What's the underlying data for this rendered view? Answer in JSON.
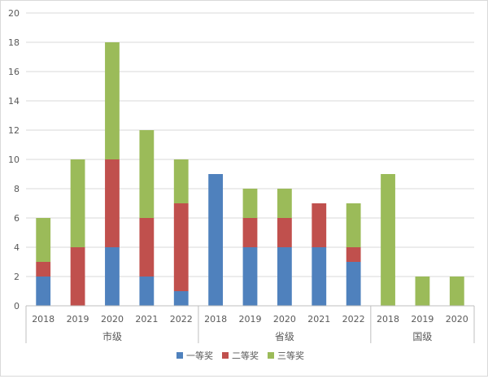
{
  "chart_data": {
    "type": "bar",
    "stacked": true,
    "groups": [
      {
        "label": "市级",
        "categories": [
          "2018",
          "2019",
          "2020",
          "2021",
          "2022"
        ]
      },
      {
        "label": "省级",
        "categories": [
          "2018",
          "2019",
          "2020",
          "2021",
          "2022"
        ]
      },
      {
        "label": "国级",
        "categories": [
          "2018",
          "2019",
          "2020"
        ]
      }
    ],
    "series": [
      {
        "name": "一等奖",
        "color": "#4f81bd",
        "values": [
          2,
          0,
          4,
          2,
          1,
          9,
          4,
          4,
          4,
          3,
          0,
          0,
          0
        ]
      },
      {
        "name": "二等奖",
        "color": "#c0504d",
        "values": [
          1,
          4,
          6,
          4,
          6,
          0,
          2,
          2,
          3,
          1,
          0,
          0,
          0
        ]
      },
      {
        "name": "三等奖",
        "color": "#9bbb59",
        "values": [
          3,
          6,
          8,
          6,
          3,
          0,
          2,
          2,
          0,
          3,
          9,
          2,
          2
        ]
      }
    ],
    "ylim": [
      0,
      20
    ],
    "yticks": [
      "0",
      "2",
      "4",
      "6",
      "8",
      "10",
      "12",
      "14",
      "16",
      "18",
      "20"
    ],
    "grid": true,
    "legend_position": "bottom"
  }
}
